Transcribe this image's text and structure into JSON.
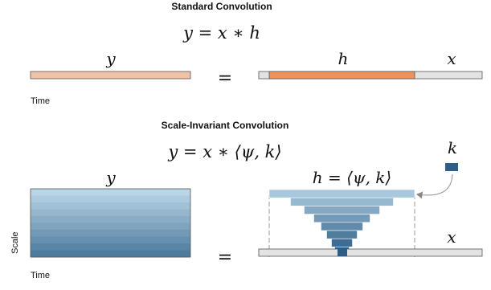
{
  "standard": {
    "title": "Standard Convolution",
    "equation": "y = x ∗ h",
    "label_y": "y",
    "label_h": "h",
    "label_x": "x",
    "equals": "=",
    "time_label": "Time"
  },
  "scale_invariant": {
    "title": "Scale-Invariant Convolution",
    "equation": "y = x ∗ ⟨ψ, k⟩",
    "label_y": "y",
    "label_h": "h = ⟨ψ, k⟩",
    "label_k": "k",
    "label_x": "x",
    "equals": "=",
    "time_label": "Time",
    "scale_label": "Scale"
  },
  "colors": {
    "y_bar_light": "#f1c3a4",
    "h_bar": "#ee915c",
    "x_bar": "#e3e3e3",
    "k_box": "#2f5f86",
    "pyramid_top": "#a8c8dd",
    "pyramid_bottom": "#2d5d85",
    "output_top": "#b9d5e6",
    "output_bottom": "#4e7c9e"
  }
}
